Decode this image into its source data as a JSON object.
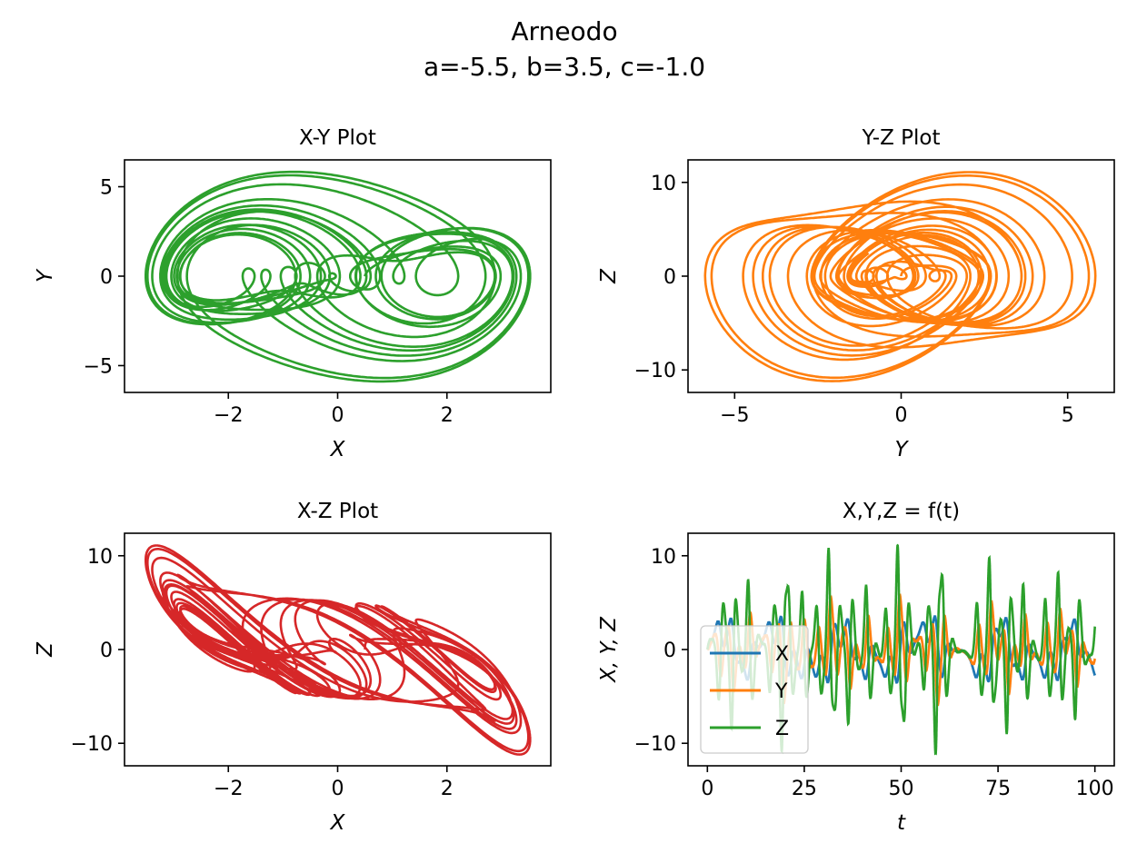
{
  "figure": {
    "title": "Arneodo",
    "subtitle": "a=-5.5, b=3.5, c=-1.0"
  },
  "colors": {
    "X": "#1f77b4",
    "Y": "#ff7f0e",
    "Z": "#2ca02c",
    "XZ": "#d62728"
  },
  "chart_data": [
    {
      "id": "xy",
      "type": "line",
      "title": "X-Y Plot",
      "xlabel": "X",
      "ylabel": "Y",
      "xlim": [
        -3.9,
        3.9
      ],
      "ylim": [
        -6.5,
        6.5
      ],
      "xticks": [
        -2,
        0,
        2
      ],
      "yticks": [
        -5,
        0,
        5
      ],
      "xticklabels": [
        "−2",
        "0",
        "2"
      ],
      "yticklabels": [
        "−5",
        "0",
        "5"
      ],
      "color": "#2ca02c",
      "series": "x-y"
    },
    {
      "id": "yz",
      "type": "line",
      "title": "Y-Z Plot",
      "xlabel": "Y",
      "ylabel": "Z",
      "xlim": [
        -6.4,
        6.4
      ],
      "ylim": [
        -12.4,
        12.4
      ],
      "xticks": [
        -5,
        0,
        5
      ],
      "yticks": [
        -10,
        0,
        10
      ],
      "xticklabels": [
        "−5",
        "0",
        "5"
      ],
      "yticklabels": [
        "−10",
        "0",
        "10"
      ],
      "color": "#ff7f0e",
      "series": "y-z"
    },
    {
      "id": "xz",
      "type": "line",
      "title": "X-Z Plot",
      "xlabel": "X",
      "ylabel": "Z",
      "xlim": [
        -3.9,
        3.9
      ],
      "ylim": [
        -12.4,
        12.4
      ],
      "xticks": [
        -2,
        0,
        2
      ],
      "yticks": [
        -10,
        0,
        10
      ],
      "xticklabels": [
        "−2",
        "0",
        "2"
      ],
      "yticklabels": [
        "−10",
        "0",
        "10"
      ],
      "color": "#d62728",
      "series": "x-z"
    },
    {
      "id": "t",
      "type": "line",
      "title": "X,Y,Z = f(t)",
      "xlabel": "t",
      "ylabel": "X, Y, Z",
      "xlim": [
        -5,
        105
      ],
      "ylim": [
        -12.4,
        12.4
      ],
      "xticks": [
        0,
        25,
        50,
        75,
        100
      ],
      "yticks": [
        -10,
        0,
        10
      ],
      "xticklabels": [
        "0",
        "25",
        "50",
        "75",
        "100"
      ],
      "yticklabels": [
        "−10",
        "0",
        "10"
      ],
      "legend": {
        "placement": "lower-left",
        "entries": [
          "X",
          "Y",
          "Z"
        ]
      },
      "t_range": [
        0,
        100
      ]
    }
  ],
  "system": {
    "name": "Arneodo",
    "a": -5.5,
    "b": 3.5,
    "c": -1.0,
    "initial": [
      0.5,
      0.0,
      0.0
    ]
  }
}
